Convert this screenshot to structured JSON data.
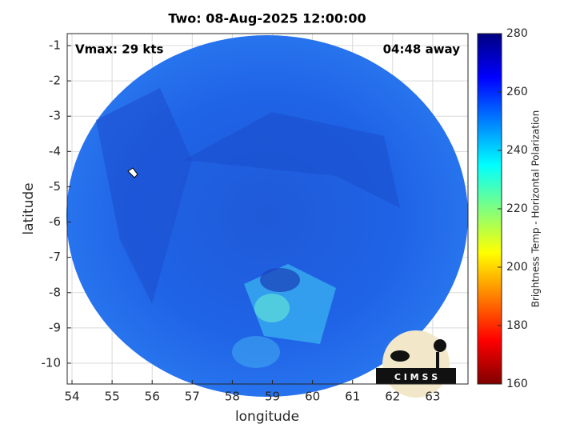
{
  "chart_data": {
    "type": "map",
    "title": "Two: 08-Aug-2025 12:00:00",
    "annotations": [
      "Vmax: 29 kts",
      "04:48 away"
    ],
    "x_label": "longitude",
    "y_label": "latitude",
    "xlim": [
      53.88,
      63.88
    ],
    "xticks": [
      54,
      55,
      56,
      57,
      58,
      59,
      60,
      61,
      62,
      63
    ],
    "ylim": [
      -10.59,
      -0.66
    ],
    "yticks": [
      -1,
      -2,
      -3,
      -4,
      -5,
      -6,
      -7,
      -8,
      -9,
      -10
    ],
    "grid": true,
    "colorbar": {
      "label": "Brightness Temp - Horizontal Polarization",
      "colormap": "jet",
      "clim": [
        160,
        280
      ],
      "ticks": [
        160,
        180,
        200,
        220,
        240,
        260,
        280
      ]
    },
    "logo": "C I M S S"
  }
}
